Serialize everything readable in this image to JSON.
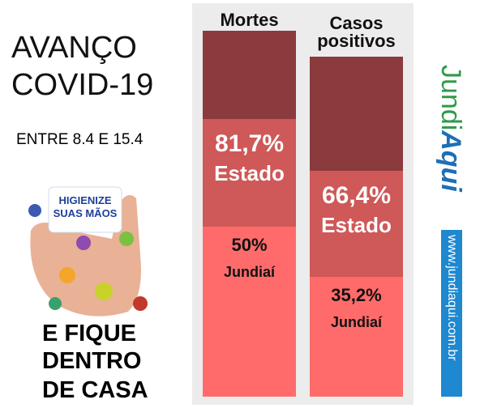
{
  "header": {
    "title": [
      "AVANÇO",
      "COVID-19"
    ],
    "subtitle": "ENTRE 8.4 E 15.4"
  },
  "poster": {
    "sign": [
      "HIGIENIZE",
      "SUAS MÃOS"
    ],
    "slogan": [
      "E FIQUE",
      "DENTRO",
      "DE CASA"
    ]
  },
  "brand": {
    "name_part1": "Jundi",
    "name_part2": "Aqui",
    "url": "www.jundiaqui.com.br"
  },
  "chart_data": {
    "type": "bar",
    "categories": [
      "Mortes",
      "Casos positivos"
    ],
    "series": [
      {
        "name": "Estado",
        "color": "#cf5858",
        "values": [
          81.7,
          66.4
        ],
        "value_labels": [
          "81,7%",
          "66,4%"
        ]
      },
      {
        "name": "Jundiaí",
        "color": "#ff6b6b",
        "values": [
          50,
          35.2
        ],
        "value_labels": [
          "50%",
          "35,2%"
        ]
      }
    ],
    "ylim": [
      0,
      100
    ]
  }
}
